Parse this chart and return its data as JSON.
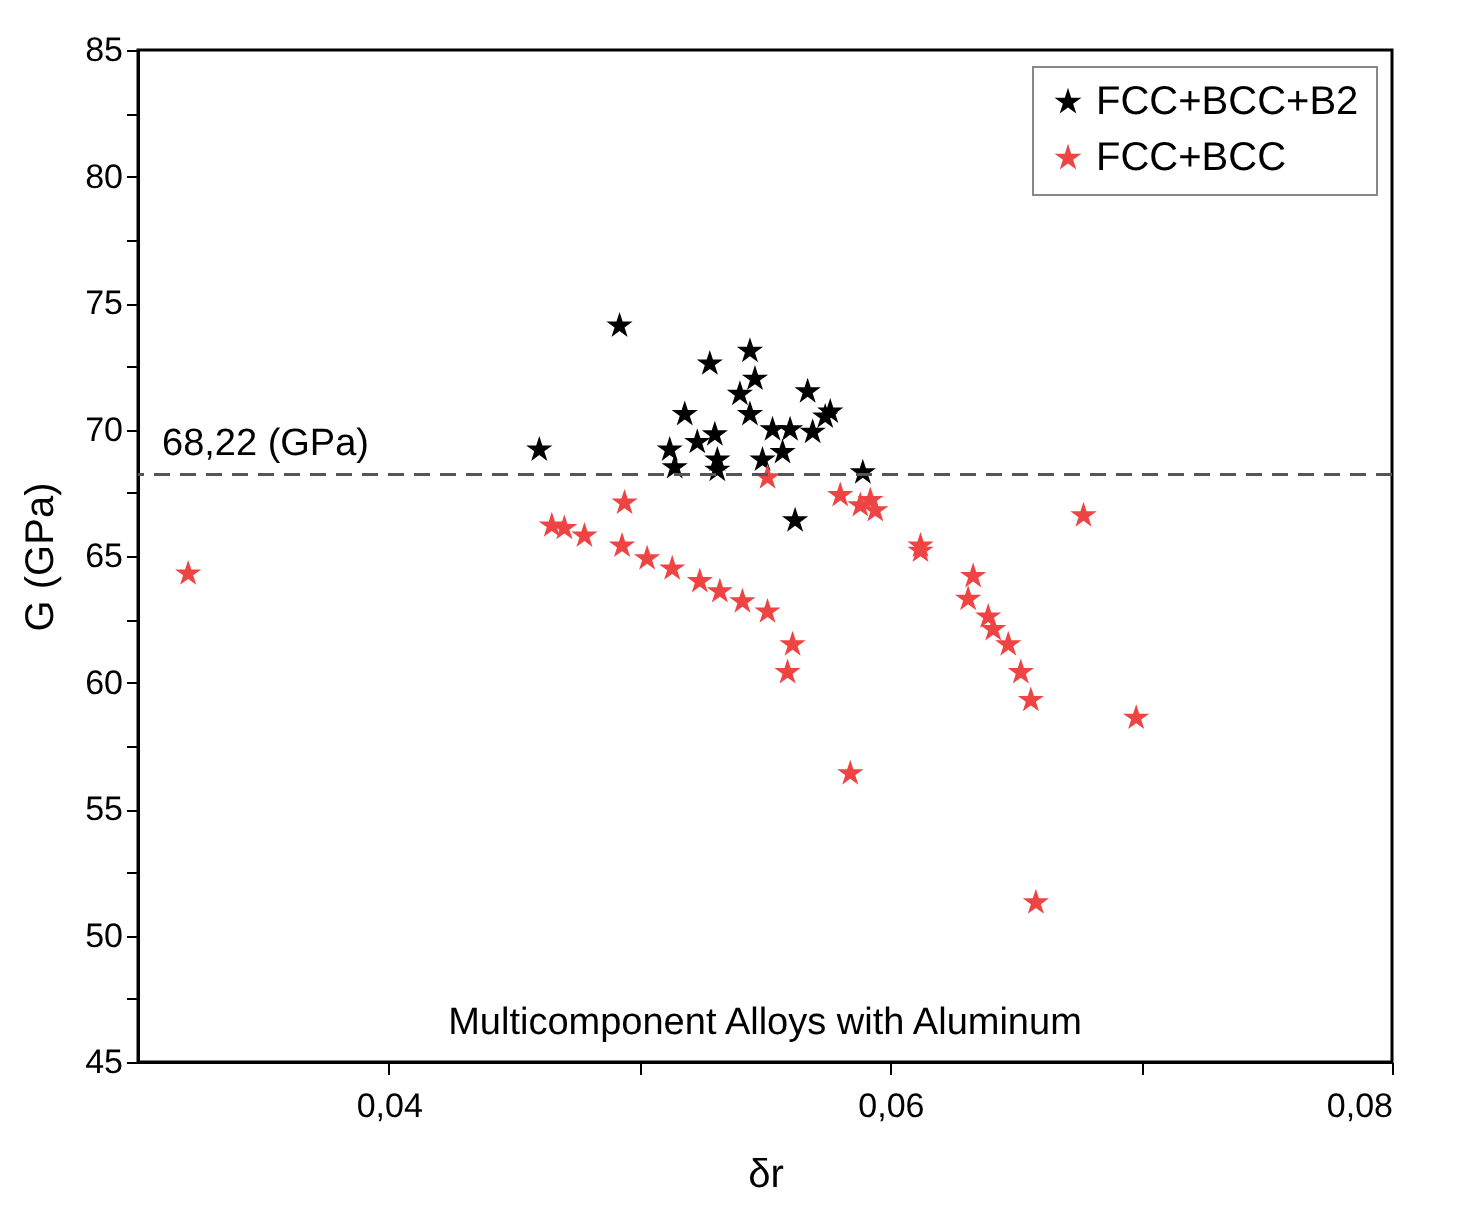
{
  "chart_data": {
    "type": "scatter",
    "xlabel": "δr",
    "ylabel": "G (GPa)",
    "xlim": [
      0.03,
      0.08
    ],
    "ylim": [
      45,
      85
    ],
    "xticks": [
      {
        "value": 0.04,
        "label": "0,04"
      },
      {
        "value": 0.05,
        "label": null
      },
      {
        "value": 0.06,
        "label": "0,06"
      },
      {
        "value": 0.07,
        "label": null
      },
      {
        "value": 0.08,
        "label": "0,08"
      }
    ],
    "yticks": [
      45,
      {
        "value": 47.5,
        "label": null
      },
      50,
      {
        "value": 52.5,
        "label": null
      },
      55,
      {
        "value": 57.5,
        "label": null
      },
      60,
      {
        "value": 62.5,
        "label": null
      },
      65,
      {
        "value": 67.5,
        "label": null
      },
      70,
      {
        "value": 72.5,
        "label": null
      },
      75,
      {
        "value": 77.5,
        "label": null
      },
      80,
      {
        "value": 82.5,
        "label": null
      },
      85
    ],
    "grid": false,
    "legend": "top right",
    "marker": "star",
    "ref_lines": [
      {
        "axis": "y",
        "value": 68.22,
        "label": "68,22 (GPa)",
        "color": "#555555",
        "line_style": "dashed"
      }
    ],
    "annotations": [
      "Multicomponent Alloys with Aluminum"
    ],
    "series": [
      {
        "name": "FCC+BCC+B2",
        "color": "#000000",
        "x": [
          0.0492,
          0.046,
          0.0528,
          0.0544,
          0.0546,
          0.054,
          0.0544,
          0.0567,
          0.0576,
          0.0574,
          0.0553,
          0.056,
          0.0569,
          0.0518,
          0.0523,
          0.053,
          0.0512,
          0.0514,
          0.0531,
          0.0531,
          0.0549,
          0.0557,
          0.0562,
          0.0589
        ],
        "values": [
          74.1,
          69.2,
          72.6,
          73.1,
          72.0,
          71.4,
          70.6,
          71.5,
          70.7,
          70.5,
          70.0,
          70.0,
          69.9,
          70.6,
          69.5,
          69.8,
          69.2,
          68.5,
          68.8,
          68.4,
          68.8,
          69.1,
          66.4,
          68.3
        ]
      },
      {
        "name": "FCC+BCC",
        "color": "#ee4444",
        "x": [
          0.032,
          0.0465,
          0.047,
          0.0478,
          0.0494,
          0.0493,
          0.0503,
          0.0513,
          0.0524,
          0.0532,
          0.0541,
          0.0551,
          0.0561,
          0.0559,
          0.0551,
          0.058,
          0.0588,
          0.0594,
          0.0592,
          0.0677,
          0.0612,
          0.0612,
          0.0633,
          0.0631,
          0.0639,
          0.0641,
          0.0647,
          0.0652,
          0.0656,
          0.0698,
          0.0584,
          0.0658
        ],
        "values": [
          64.3,
          66.2,
          66.1,
          65.8,
          67.1,
          65.4,
          64.9,
          64.5,
          64.0,
          63.6,
          63.2,
          62.8,
          61.5,
          60.4,
          68.1,
          67.4,
          67.0,
          66.8,
          67.2,
          66.6,
          65.4,
          65.2,
          64.2,
          63.3,
          62.6,
          62.1,
          61.5,
          60.4,
          59.3,
          58.6,
          56.4,
          51.3
        ]
      }
    ]
  }
}
